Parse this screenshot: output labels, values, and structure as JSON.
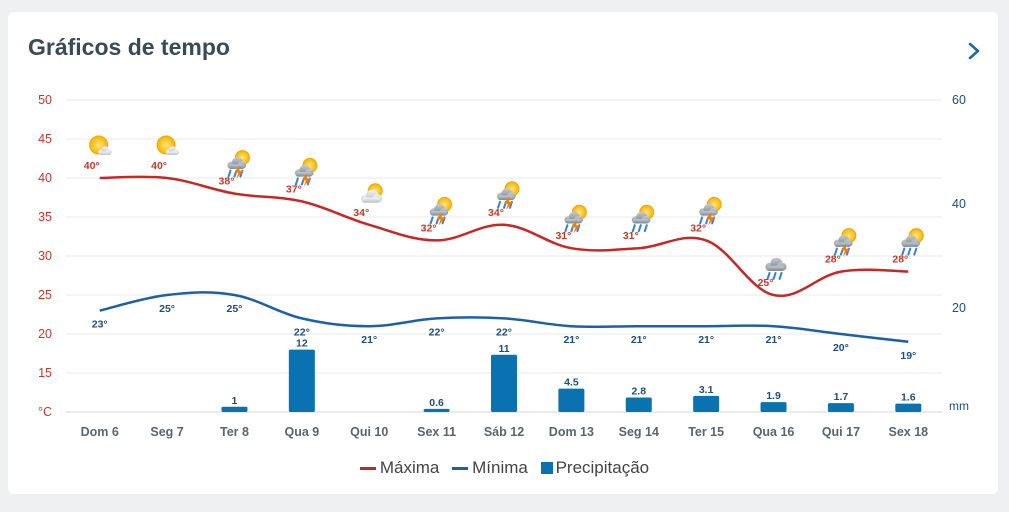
{
  "card": {
    "title": "Gráficos de tempo",
    "next_icon": "chevron-right-icon"
  },
  "legend": [
    {
      "label": "Máxima",
      "color": "#c62828",
      "kind": "line"
    },
    {
      "label": "Mínima",
      "color": "#1f5fa8",
      "kind": "line"
    },
    {
      "label": "Precipitação",
      "color": "#0a72b0",
      "kind": "box"
    }
  ],
  "chart_data": {
    "type": "line",
    "categories": [
      "Dom 6",
      "Seg 7",
      "Ter 8",
      "Qua 9",
      "Qui 10",
      "Sex 11",
      "Sáb 12",
      "Dom 13",
      "Seg 14",
      "Ter 15",
      "Qua 16",
      "Qui 17",
      "Sex 18"
    ],
    "series": [
      {
        "name": "Máxima",
        "type": "line",
        "axis": "left",
        "color": "#c62828",
        "values": [
          40,
          40,
          38,
          37,
          34,
          32,
          34,
          31,
          31,
          32,
          25,
          28,
          28
        ],
        "labels": [
          "40°",
          "40°",
          "38°",
          "37°",
          "34°",
          "32°",
          "34°",
          "31°",
          "31°",
          "32°",
          "25°",
          "28°",
          "28°"
        ]
      },
      {
        "name": "Mínima",
        "type": "line",
        "axis": "left",
        "color": "#1f5fa8",
        "values": [
          23,
          25,
          25,
          22,
          21,
          22,
          22,
          21,
          21,
          21,
          21,
          20,
          19
        ],
        "labels": [
          "23°",
          "25°",
          "25°",
          "22°",
          "21°",
          "22°",
          "22°",
          "21°",
          "21°",
          "21°",
          "21°",
          "20°",
          "19°"
        ]
      },
      {
        "name": "Precipitação",
        "type": "bar",
        "axis": "right",
        "color": "#0a72b0",
        "values": [
          null,
          null,
          1,
          12,
          null,
          0.6,
          11,
          4.5,
          2.8,
          3.1,
          1.9,
          1.7,
          1.6
        ],
        "labels": [
          "",
          "",
          "1",
          "12",
          "",
          "0.6",
          "11",
          "4.5",
          "2.8",
          "3.1",
          "1.9",
          "1.7",
          "1.6"
        ]
      }
    ],
    "weather_icons": [
      "partly-sunny-icon",
      "partly-sunny-icon",
      "thunderstorm-icon",
      "thunderstorm-icon",
      "partly-cloudy-icon",
      "thunderstorm-icon",
      "thunderstorm-icon",
      "thunderstorm-icon",
      "sun-rain-icon",
      "thunderstorm-icon",
      "rain-cloud-icon",
      "thunderstorm-icon",
      "sun-rain-icon"
    ],
    "y_left": {
      "ticks": [
        "50",
        "45",
        "40",
        "35",
        "30",
        "25",
        "20",
        "15",
        "°C"
      ],
      "range": [
        10,
        50
      ],
      "unit": "°C"
    },
    "y_right": {
      "ticks": [
        "60",
        "40",
        "20"
      ],
      "range": [
        0,
        60
      ],
      "unit": "mm"
    },
    "grid": true
  }
}
